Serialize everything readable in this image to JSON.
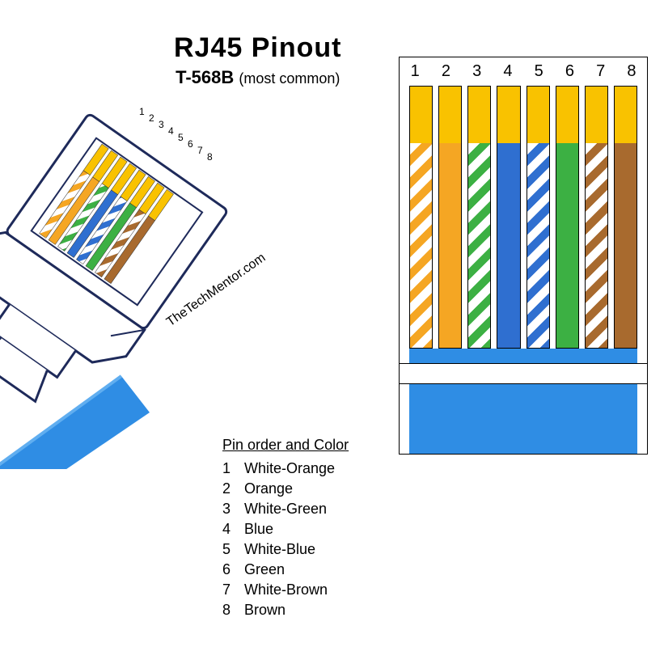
{
  "title": "RJ45  Pinout",
  "subtitle": "T-568B",
  "subtitle_note": "(most common)",
  "credit": "TheTechMentor.com",
  "colors": {
    "orange": "#f5a623",
    "green": "#3cb043",
    "blue": "#2f6fd0",
    "brown": "#a86a2e",
    "gold_tip": "#f9c200",
    "cable_blue": "#2f8de4",
    "cable_blue_light": "#60aef0",
    "connector_outline": "#1e2a5a"
  },
  "pins": [
    {
      "n": 1,
      "label": "White-Orange",
      "style": "striped",
      "color_key": "orange"
    },
    {
      "n": 2,
      "label": "Orange",
      "style": "solid",
      "color_key": "orange"
    },
    {
      "n": 3,
      "label": "White-Green",
      "style": "striped",
      "color_key": "green"
    },
    {
      "n": 4,
      "label": "Blue",
      "style": "solid",
      "color_key": "blue"
    },
    {
      "n": 5,
      "label": "White-Blue",
      "style": "striped",
      "color_key": "blue"
    },
    {
      "n": 6,
      "label": "Green",
      "style": "solid",
      "color_key": "green"
    },
    {
      "n": 7,
      "label": "White-Brown",
      "style": "striped",
      "color_key": "brown"
    },
    {
      "n": 8,
      "label": "Brown",
      "style": "solid",
      "color_key": "brown"
    }
  ],
  "legend_header": "Pin order and Color",
  "iso_pin_labels": [
    "1",
    "2",
    "3",
    "4",
    "5",
    "6",
    "7",
    "8"
  ],
  "iso": {
    "wire_width": 10,
    "wire_gap": 4,
    "wire_len": 160,
    "tip_len": 40
  }
}
